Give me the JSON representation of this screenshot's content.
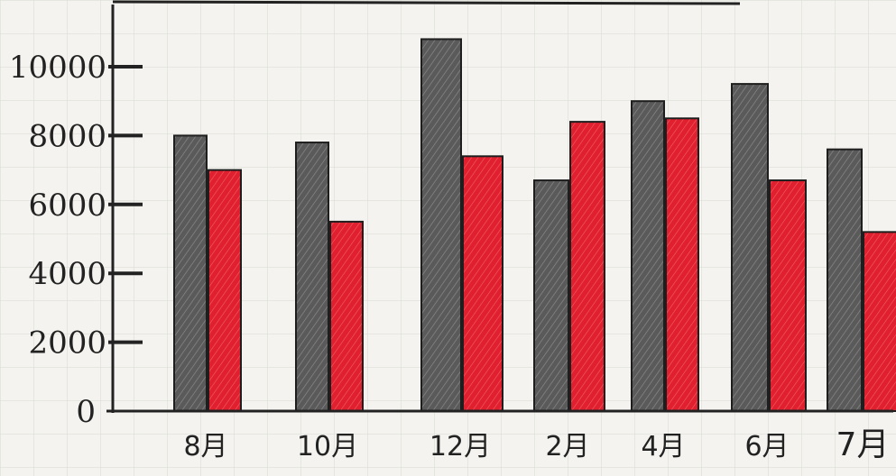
{
  "chart_data": {
    "type": "bar",
    "categories": [
      "8月",
      "10月",
      "12月",
      "2月",
      "4月",
      "6月",
      "7月"
    ],
    "series": [
      {
        "color": "#6b6b6b",
        "values": [
          8000,
          7800,
          10800,
          6700,
          9000,
          9500,
          7600
        ]
      },
      {
        "color": "#e0202e",
        "values": [
          7000,
          5500,
          7400,
          8400,
          8500,
          6700,
          5200
        ]
      }
    ],
    "ylim": [
      0,
      11500
    ],
    "yticks": [
      {
        "value": 0,
        "label": "0"
      },
      {
        "value": 2000,
        "label": "2000"
      },
      {
        "value": 4000,
        "label": "4000"
      },
      {
        "value": 6000,
        "label": "6000"
      },
      {
        "value": 8000,
        "label": "8000"
      },
      {
        "value": 10000,
        "label": "10000"
      }
    ],
    "grid": true,
    "style": "hand-drawn on graph paper"
  }
}
